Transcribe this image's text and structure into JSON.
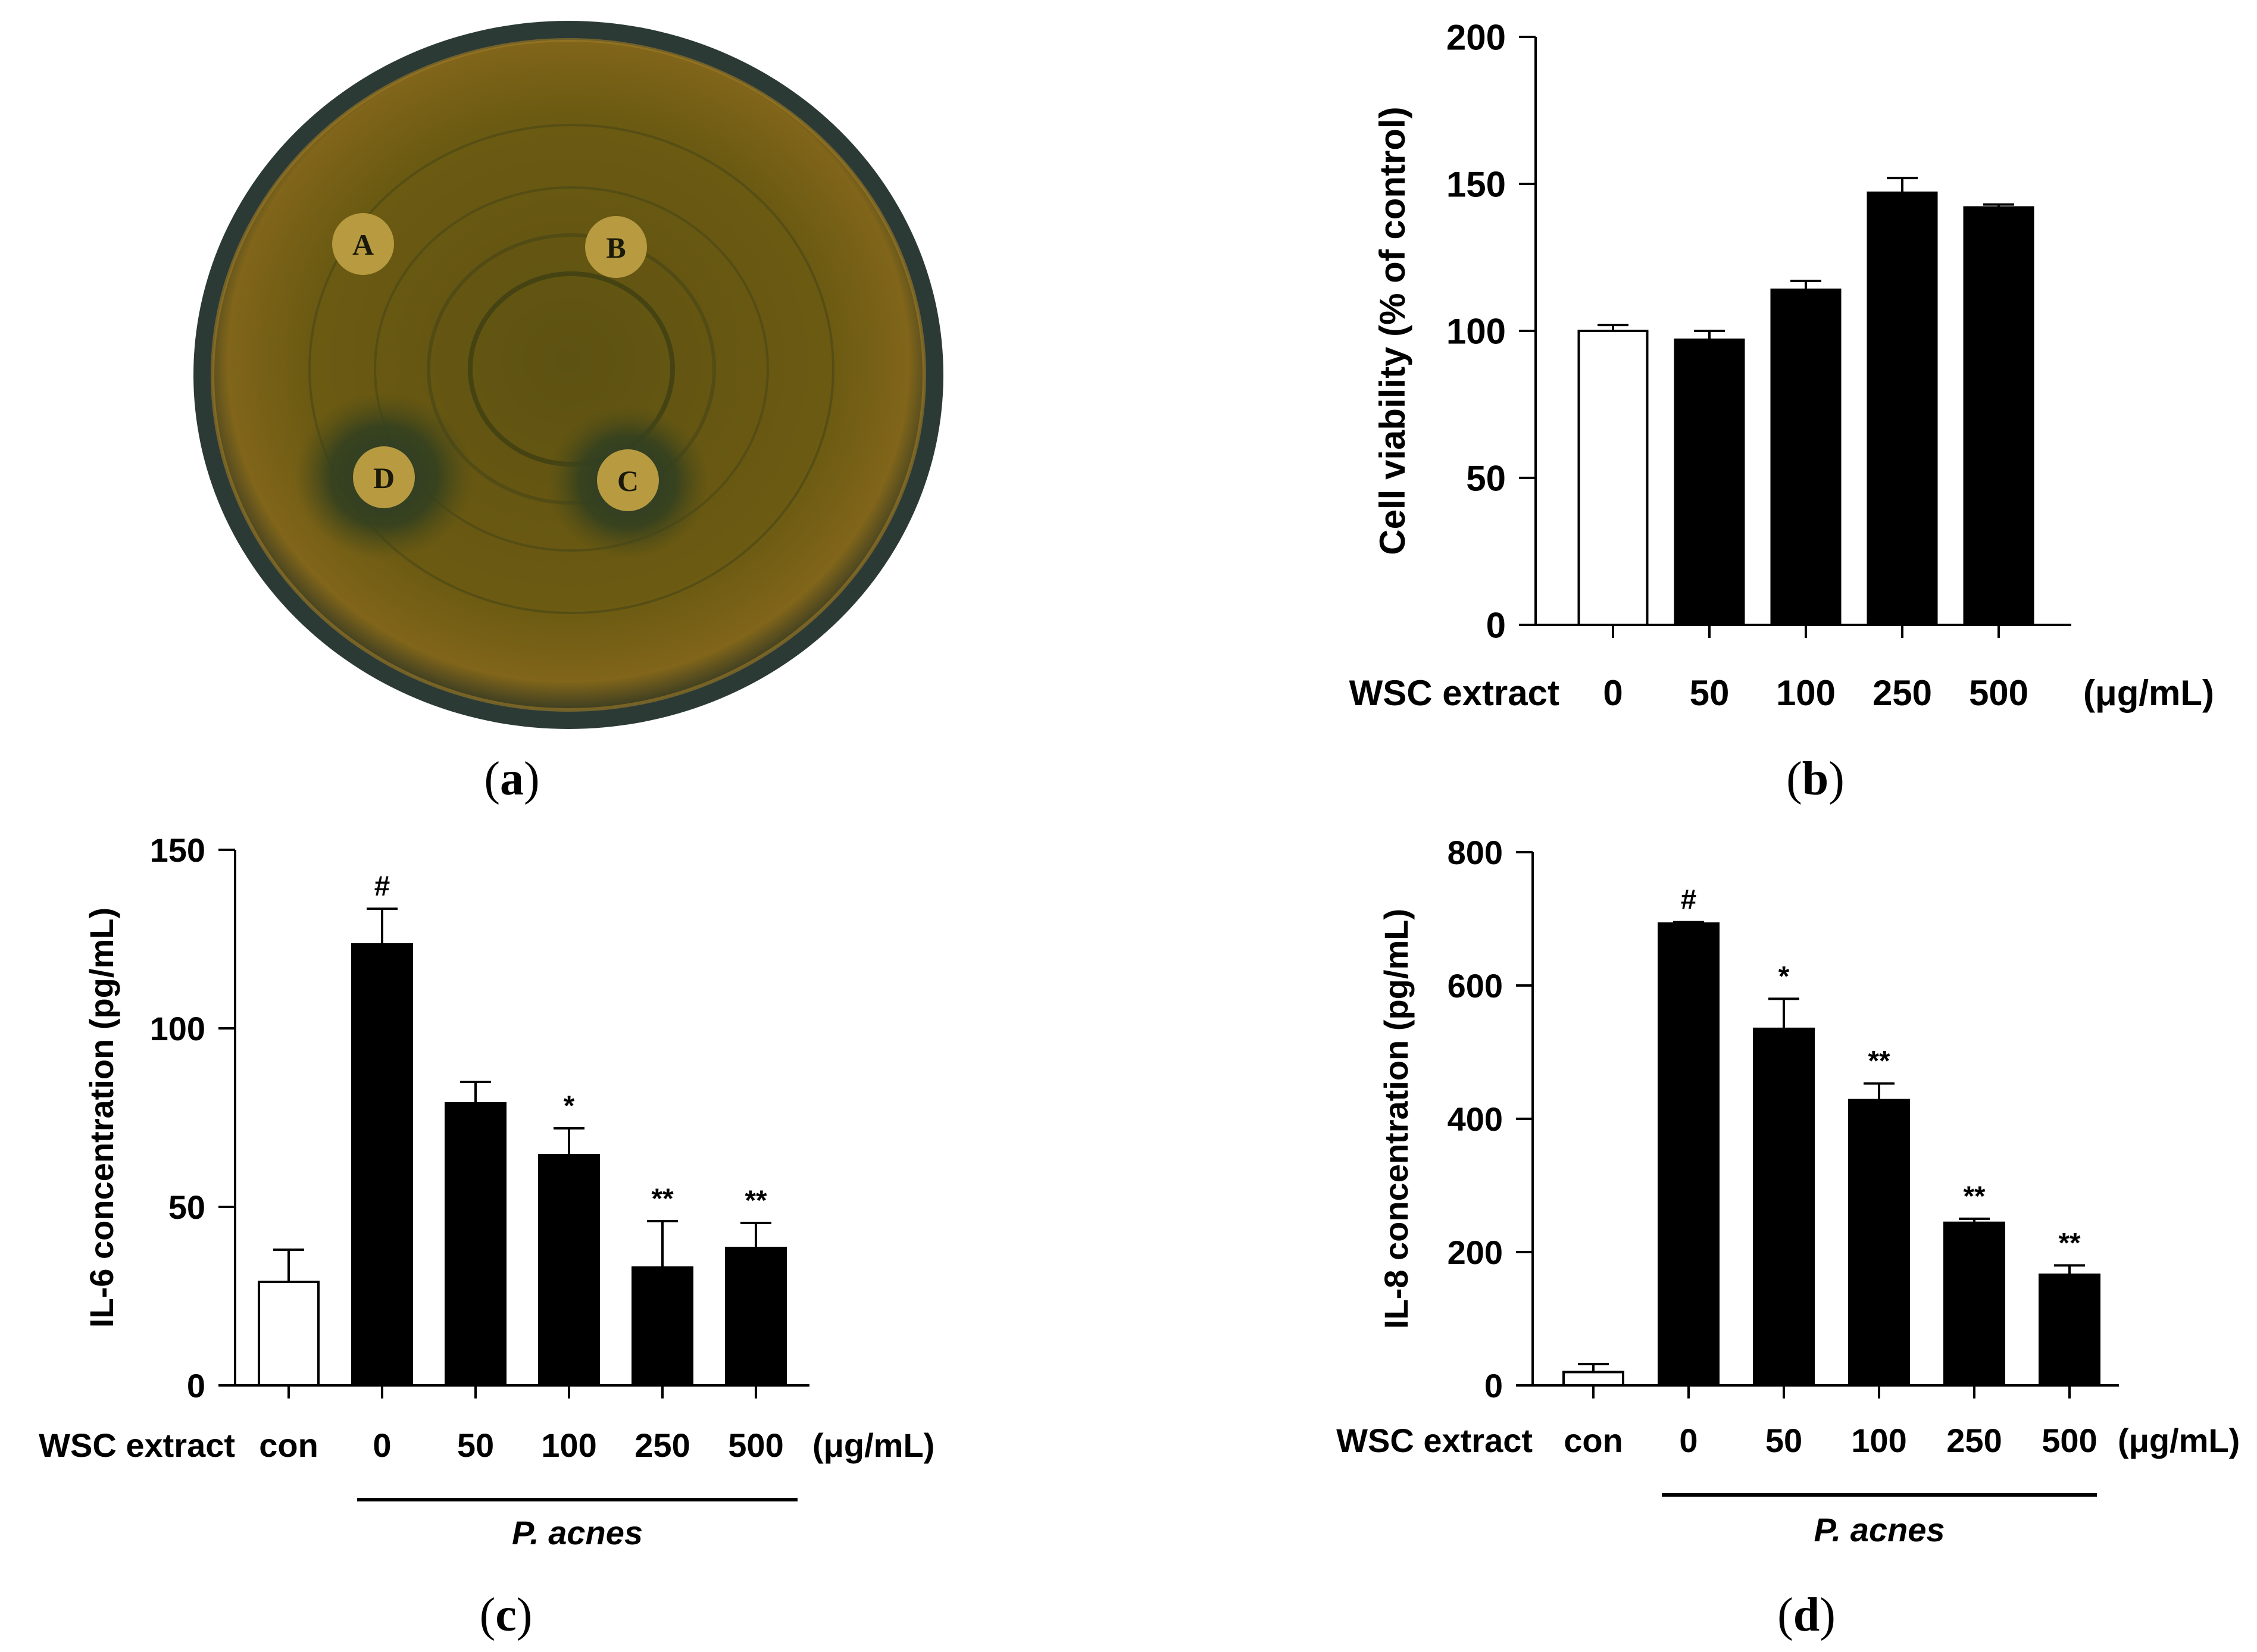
{
  "panels": {
    "a": {
      "caption": "a",
      "disc_labels": [
        "A",
        "B",
        "C",
        "D"
      ]
    },
    "b": {
      "caption": "b"
    },
    "c": {
      "caption": "c"
    },
    "d": {
      "caption": "d"
    }
  },
  "colors": {
    "plate_agar": "#6b5a12",
    "plate_rim": "#2c3a35",
    "disc": "#b89a40",
    "bar_fill": "#000000",
    "control_fill": "#ffffff"
  },
  "chart_data": [
    {
      "panel": "b",
      "type": "bar",
      "ylabel": "Cell viability (% of control)",
      "ylim": [
        0,
        200
      ],
      "yticks": [
        0,
        50,
        100,
        150,
        200
      ],
      "x_prefix": "WSC extract",
      "x_unit": "(μg/mL)",
      "categories": [
        "0",
        "50",
        "100",
        "250",
        "500"
      ],
      "values": [
        100,
        97,
        114,
        147,
        142
      ],
      "errors": [
        2,
        3,
        3,
        5,
        1
      ],
      "fills": [
        "white",
        "black",
        "black",
        "black",
        "black"
      ],
      "annotations": [
        "",
        "",
        "",
        "",
        ""
      ]
    },
    {
      "panel": "c",
      "type": "bar",
      "ylabel": "IL-6 concentration (pg/mL)",
      "ylim": [
        0,
        150
      ],
      "yticks": [
        0,
        50,
        100,
        150
      ],
      "x_prefix": "WSC extract",
      "x_unit": "(μg/mL)",
      "categories": [
        "con",
        "0",
        "50",
        "100",
        "250",
        "500"
      ],
      "values": [
        29,
        123.5,
        79,
        64.5,
        33,
        38.5
      ],
      "errors": [
        9,
        10,
        6,
        7.5,
        13,
        7
      ],
      "fills": [
        "white",
        "black",
        "black",
        "black",
        "black",
        "black"
      ],
      "annotations": [
        "",
        "#",
        "",
        "*",
        "**",
        "**"
      ],
      "group_label": "P. acnes"
    },
    {
      "panel": "d",
      "type": "bar",
      "ylabel": "IL-8 concentration (pg/mL)",
      "ylim": [
        0,
        800
      ],
      "yticks": [
        0,
        200,
        400,
        600,
        800
      ],
      "x_prefix": "WSC extract",
      "x_unit": "(μg/mL)",
      "categories": [
        "con",
        "0",
        "50",
        "100",
        "250",
        "500"
      ],
      "values": [
        20,
        693,
        535,
        428,
        244,
        166
      ],
      "errors": [
        12,
        2,
        45,
        25,
        6,
        14
      ],
      "fills": [
        "white",
        "black",
        "black",
        "black",
        "black",
        "black"
      ],
      "annotations": [
        "",
        "#",
        "*",
        "**",
        "**",
        "**"
      ],
      "group_label": "P. acnes"
    }
  ]
}
